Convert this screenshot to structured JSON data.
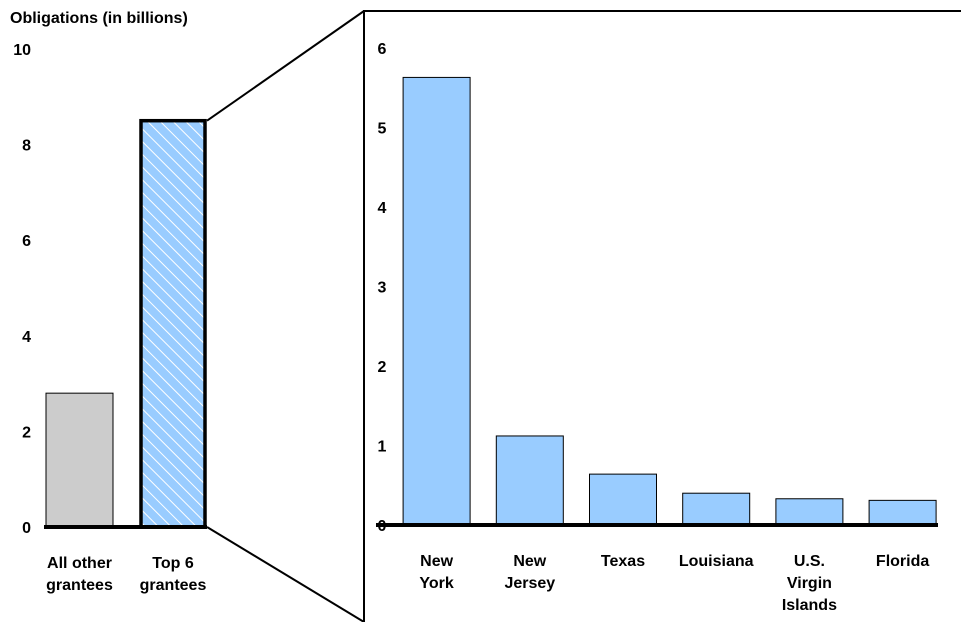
{
  "chart_data": [
    {
      "type": "bar",
      "ylabel": "Obligations (in billions)",
      "ylim": [
        0,
        10
      ],
      "yticks": [
        "0",
        "2",
        "4",
        "6",
        "8",
        "10"
      ],
      "categories": [
        [
          "All other",
          "grantees"
        ],
        [
          "Top 6",
          "grantees"
        ]
      ],
      "values": [
        2.8,
        8.5
      ],
      "colors": [
        "#cccccc",
        "#99ccff"
      ],
      "highlight_pattern": "hatched"
    },
    {
      "type": "bar",
      "ylim": [
        0,
        6
      ],
      "yticks": [
        "0",
        "1",
        "2",
        "3",
        "4",
        "5",
        "6"
      ],
      "categories": [
        [
          "New",
          "York"
        ],
        [
          "New",
          "Jersey"
        ],
        [
          "Texas"
        ],
        [
          "Louisiana"
        ],
        [
          "U.S.",
          "Virgin",
          "Islands"
        ],
        [
          "Florida"
        ]
      ],
      "values": [
        5.63,
        1.12,
        0.64,
        0.4,
        0.33,
        0.31
      ],
      "colors": [
        "#99ccff"
      ]
    }
  ]
}
